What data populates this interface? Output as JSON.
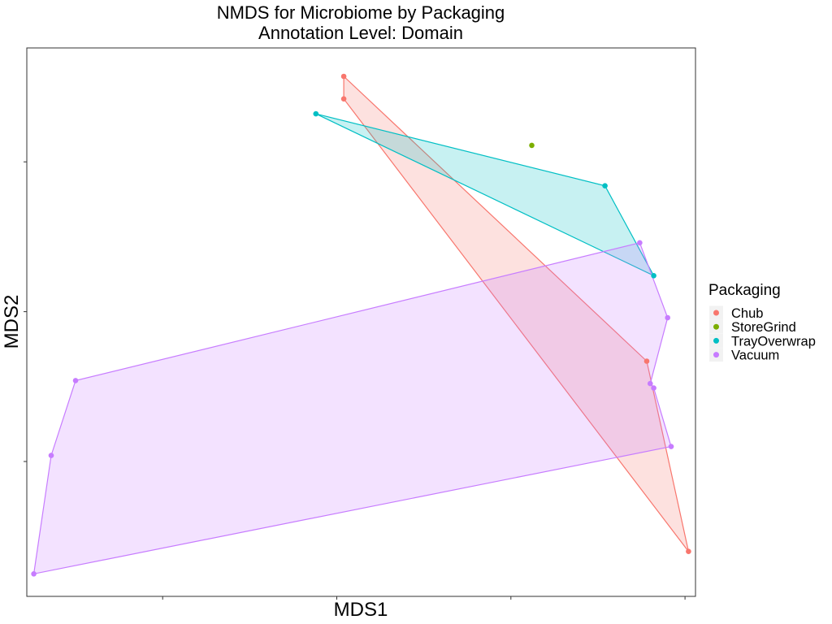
{
  "chart_data": {
    "type": "scatter",
    "title": "NMDS for Microbiome by Packaging",
    "subtitle": "Annotation Level: Domain",
    "xlabel": "MDS1",
    "ylabel": "MDS2",
    "xlim": [
      -0.39,
      1.53
    ],
    "ylim": [
      -1.9,
      1.76
    ],
    "xticks": [
      0,
      0.5,
      1,
      1.5
    ],
    "yticks": [
      -1,
      0,
      1
    ],
    "grid": false,
    "legend": {
      "title": "Packaging",
      "position": "right"
    },
    "series": [
      {
        "name": "Chub",
        "color": "#F8766D",
        "points": [
          [
            0.52,
            1.57
          ],
          [
            0.52,
            1.42
          ],
          [
            1.51,
            -1.6
          ],
          [
            1.39,
            -0.33
          ]
        ],
        "hull": [
          [
            0.52,
            1.57
          ],
          [
            0.52,
            1.42
          ],
          [
            1.51,
            -1.6
          ],
          [
            1.39,
            -0.33
          ]
        ]
      },
      {
        "name": "StoreGrind",
        "color": "#7CAE00",
        "points": [
          [
            1.06,
            1.11
          ]
        ],
        "hull": []
      },
      {
        "name": "TrayOverwrap",
        "color": "#00BFC4",
        "points": [
          [
            0.44,
            1.32
          ],
          [
            1.27,
            0.84
          ],
          [
            1.41,
            0.24
          ]
        ],
        "hull": [
          [
            0.44,
            1.32
          ],
          [
            1.27,
            0.84
          ],
          [
            1.41,
            0.24
          ]
        ]
      },
      {
        "name": "Vacuum",
        "color": "#C77CFF",
        "points": [
          [
            1.37,
            0.46
          ],
          [
            1.45,
            -0.04
          ],
          [
            1.4,
            -0.48
          ],
          [
            1.41,
            -0.51
          ],
          [
            1.46,
            -0.9
          ],
          [
            -0.37,
            -1.75
          ],
          [
            -0.32,
            -0.96
          ],
          [
            -0.25,
            -0.46
          ]
        ],
        "hull": [
          [
            1.37,
            0.46
          ],
          [
            1.45,
            -0.04
          ],
          [
            1.4,
            -0.48
          ],
          [
            1.41,
            -0.51
          ],
          [
            1.46,
            -0.9
          ],
          [
            -0.37,
            -1.75
          ],
          [
            -0.32,
            -0.96
          ],
          [
            -0.25,
            -0.46
          ]
        ]
      }
    ]
  }
}
